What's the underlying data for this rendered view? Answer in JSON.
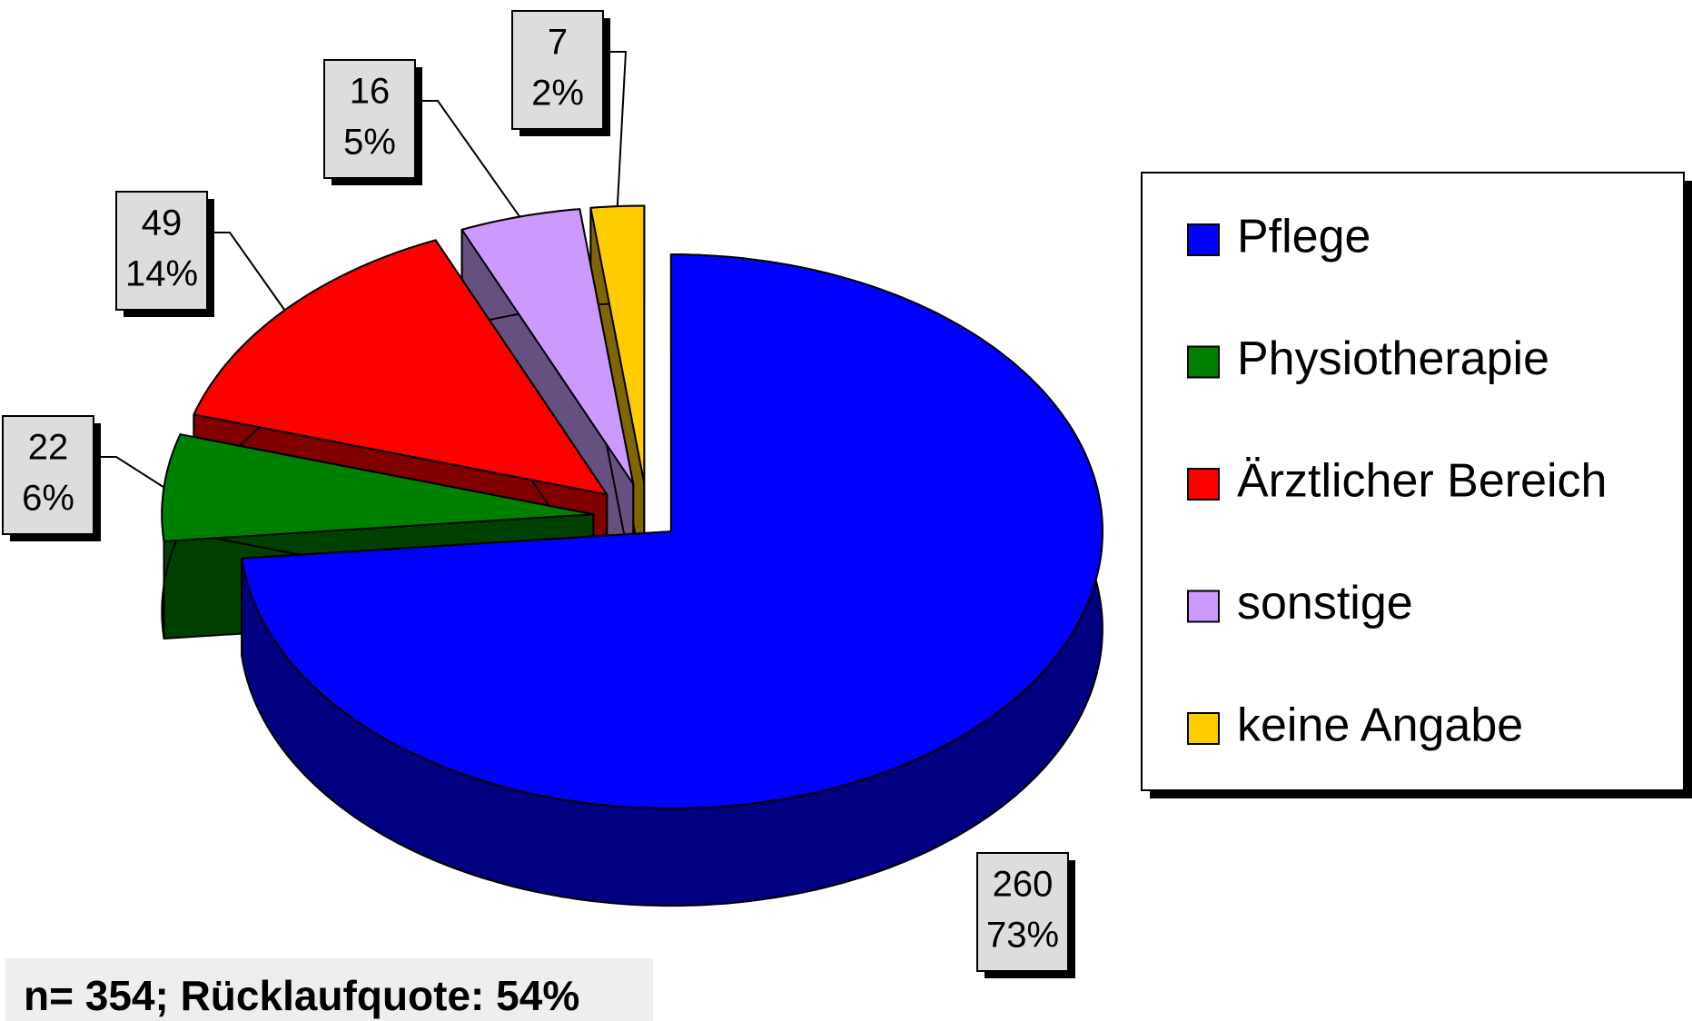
{
  "chart_data": {
    "type": "pie",
    "three_d": true,
    "categories": [
      "Pflege",
      "Physiotherapie",
      "Ärztlicher Bereich",
      "sonstige",
      "keine Angabe"
    ],
    "values": [
      260,
      22,
      49,
      16,
      7
    ],
    "percent_labels": [
      "73%",
      "6%",
      "14%",
      "5%",
      "2%"
    ],
    "colors": [
      "#0000ff",
      "#008000",
      "#ff0000",
      "#cc99ff",
      "#ffcc00"
    ],
    "side_colors": [
      "#000080",
      "#004000",
      "#800000",
      "#665080",
      "#806600"
    ],
    "legend": "right",
    "note": "n= 354; Rücklaufquote: 54%"
  }
}
